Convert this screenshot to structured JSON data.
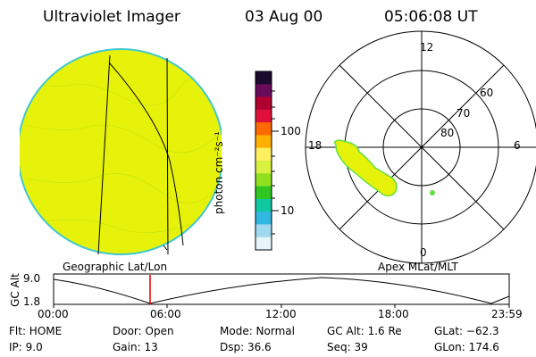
{
  "header": {
    "instrument": "Ultraviolet Imager",
    "date": "03 Aug 00",
    "time": "05:06:08 UT"
  },
  "colorbar": {
    "unit_label": "photon cm⁻²s⁻¹",
    "tick_100": "100",
    "tick_10": "10",
    "colors": [
      "#1a0a2e",
      "#6a0a5a",
      "#b00030",
      "#e0103a",
      "#ff6a00",
      "#ffb000",
      "#ffee60",
      "#d8f040",
      "#90e020",
      "#30c820",
      "#10c8a0",
      "#30b8e0",
      "#a0d8f0",
      "#e8f4f8"
    ]
  },
  "left_panel": {
    "caption": "Geographic Lat/Lon",
    "disk_color": "#e6f20a",
    "edge_color": "#40c8d0"
  },
  "right_panel": {
    "caption": "Apex MLat/MLT",
    "mlt_12": "12",
    "mlt_18": "18",
    "mlt_6": "6",
    "mlt_0": "0",
    "mlat_60": "60",
    "mlat_70": "70",
    "mlat_80": "80",
    "aurora_color": "#e6f20a",
    "spot_color": "#60e040"
  },
  "alt_strip": {
    "axis_label": "GC Alt",
    "y_max": "9.0",
    "y_min": "1.8",
    "time_ticks": [
      "00:00",
      "06:00",
      "12:00",
      "18:00",
      "23:59"
    ],
    "marker_color": "#e00000"
  },
  "info": {
    "row1": {
      "flt": "Flt: HOME",
      "door": "Door: Open",
      "mode": "Mode: Normal",
      "gcalt": "GC Alt: 1.6 Re",
      "glat": "GLat: −62.3"
    },
    "row2": {
      "ip": "IP:  9.0",
      "gain": "Gain: 13",
      "dsp": "Dsp:   36.6",
      "seq": "Seq: 39",
      "glon": "GLon: 174.6"
    }
  }
}
